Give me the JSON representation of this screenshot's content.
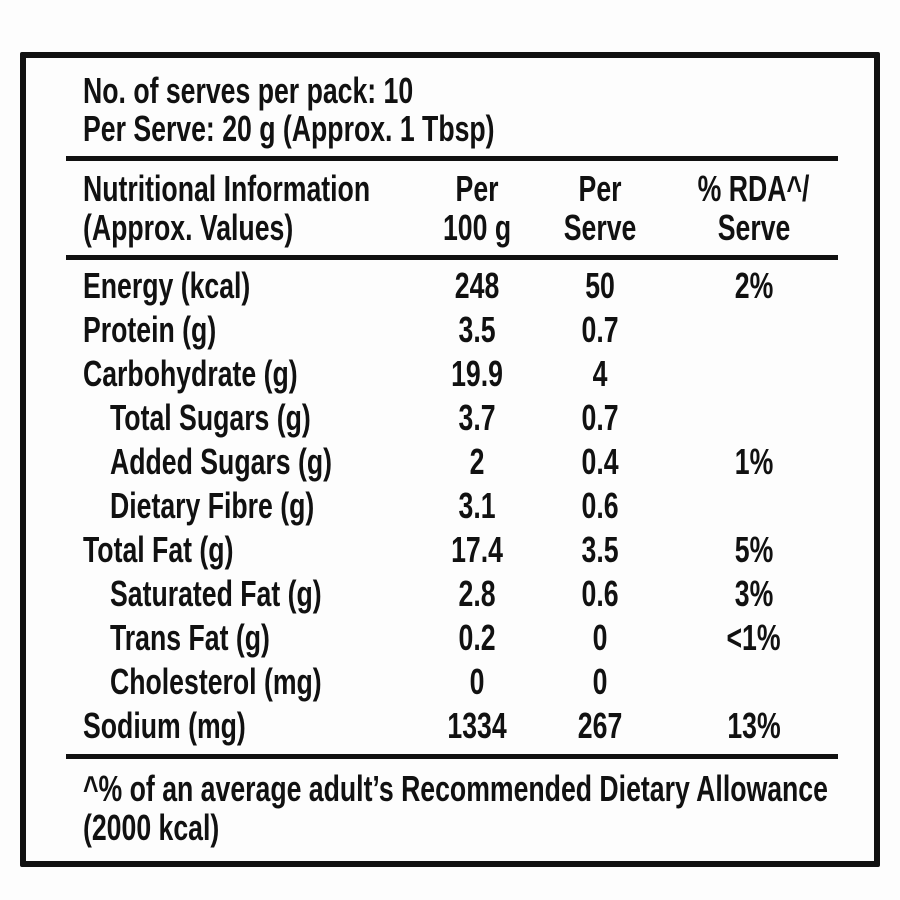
{
  "colors": {
    "text": "#111111",
    "border": "#111111",
    "background": "#fdfdfd"
  },
  "pack_info": {
    "serves_line": "No. of serves per pack: 10",
    "per_serve_line": "Per Serve: 20 g (Approx. 1 Tbsp)"
  },
  "table": {
    "headers": {
      "col1_line1": "Nutritional Information",
      "col1_line2": "(Approx. Values)",
      "col2_line1": "Per",
      "col2_line2": "100 g",
      "col3_line1": "Per",
      "col3_line2": "Serve",
      "col4_line1": "% RDA^/",
      "col4_line2": "Serve"
    },
    "rows": [
      {
        "nutrient": "Energy (kcal)",
        "per_100g": "248",
        "per_serve": "50",
        "rda_serve": "2%",
        "indent": false
      },
      {
        "nutrient": "Protein (g)",
        "per_100g": "3.5",
        "per_serve": "0.7",
        "rda_serve": "",
        "indent": false
      },
      {
        "nutrient": "Carbohydrate (g)",
        "per_100g": "19.9",
        "per_serve": "4",
        "rda_serve": "",
        "indent": false
      },
      {
        "nutrient": "Total Sugars (g)",
        "per_100g": "3.7",
        "per_serve": "0.7",
        "rda_serve": "",
        "indent": true
      },
      {
        "nutrient": "Added Sugars (g)",
        "per_100g": "2",
        "per_serve": "0.4",
        "rda_serve": "1%",
        "indent": true
      },
      {
        "nutrient": "Dietary Fibre (g)",
        "per_100g": "3.1",
        "per_serve": "0.6",
        "rda_serve": "",
        "indent": true
      },
      {
        "nutrient": "Total Fat (g)",
        "per_100g": "17.4",
        "per_serve": "3.5",
        "rda_serve": "5%",
        "indent": false
      },
      {
        "nutrient": "Saturated Fat (g)",
        "per_100g": "2.8",
        "per_serve": "0.6",
        "rda_serve": "3%",
        "indent": true
      },
      {
        "nutrient": "Trans Fat (g)",
        "per_100g": "0.2",
        "per_serve": "0",
        "rda_serve": "<1%",
        "indent": true
      },
      {
        "nutrient": "Cholesterol (mg)",
        "per_100g": "0",
        "per_serve": "0",
        "rda_serve": "",
        "indent": true
      },
      {
        "nutrient": "Sodium (mg)",
        "per_100g": "1334",
        "per_serve": "267",
        "rda_serve": "13%",
        "indent": false
      }
    ]
  },
  "footnote": {
    "line1": "^% of an average adult’s Recommended Dietary Allowance",
    "line2": "(2000 kcal)"
  }
}
